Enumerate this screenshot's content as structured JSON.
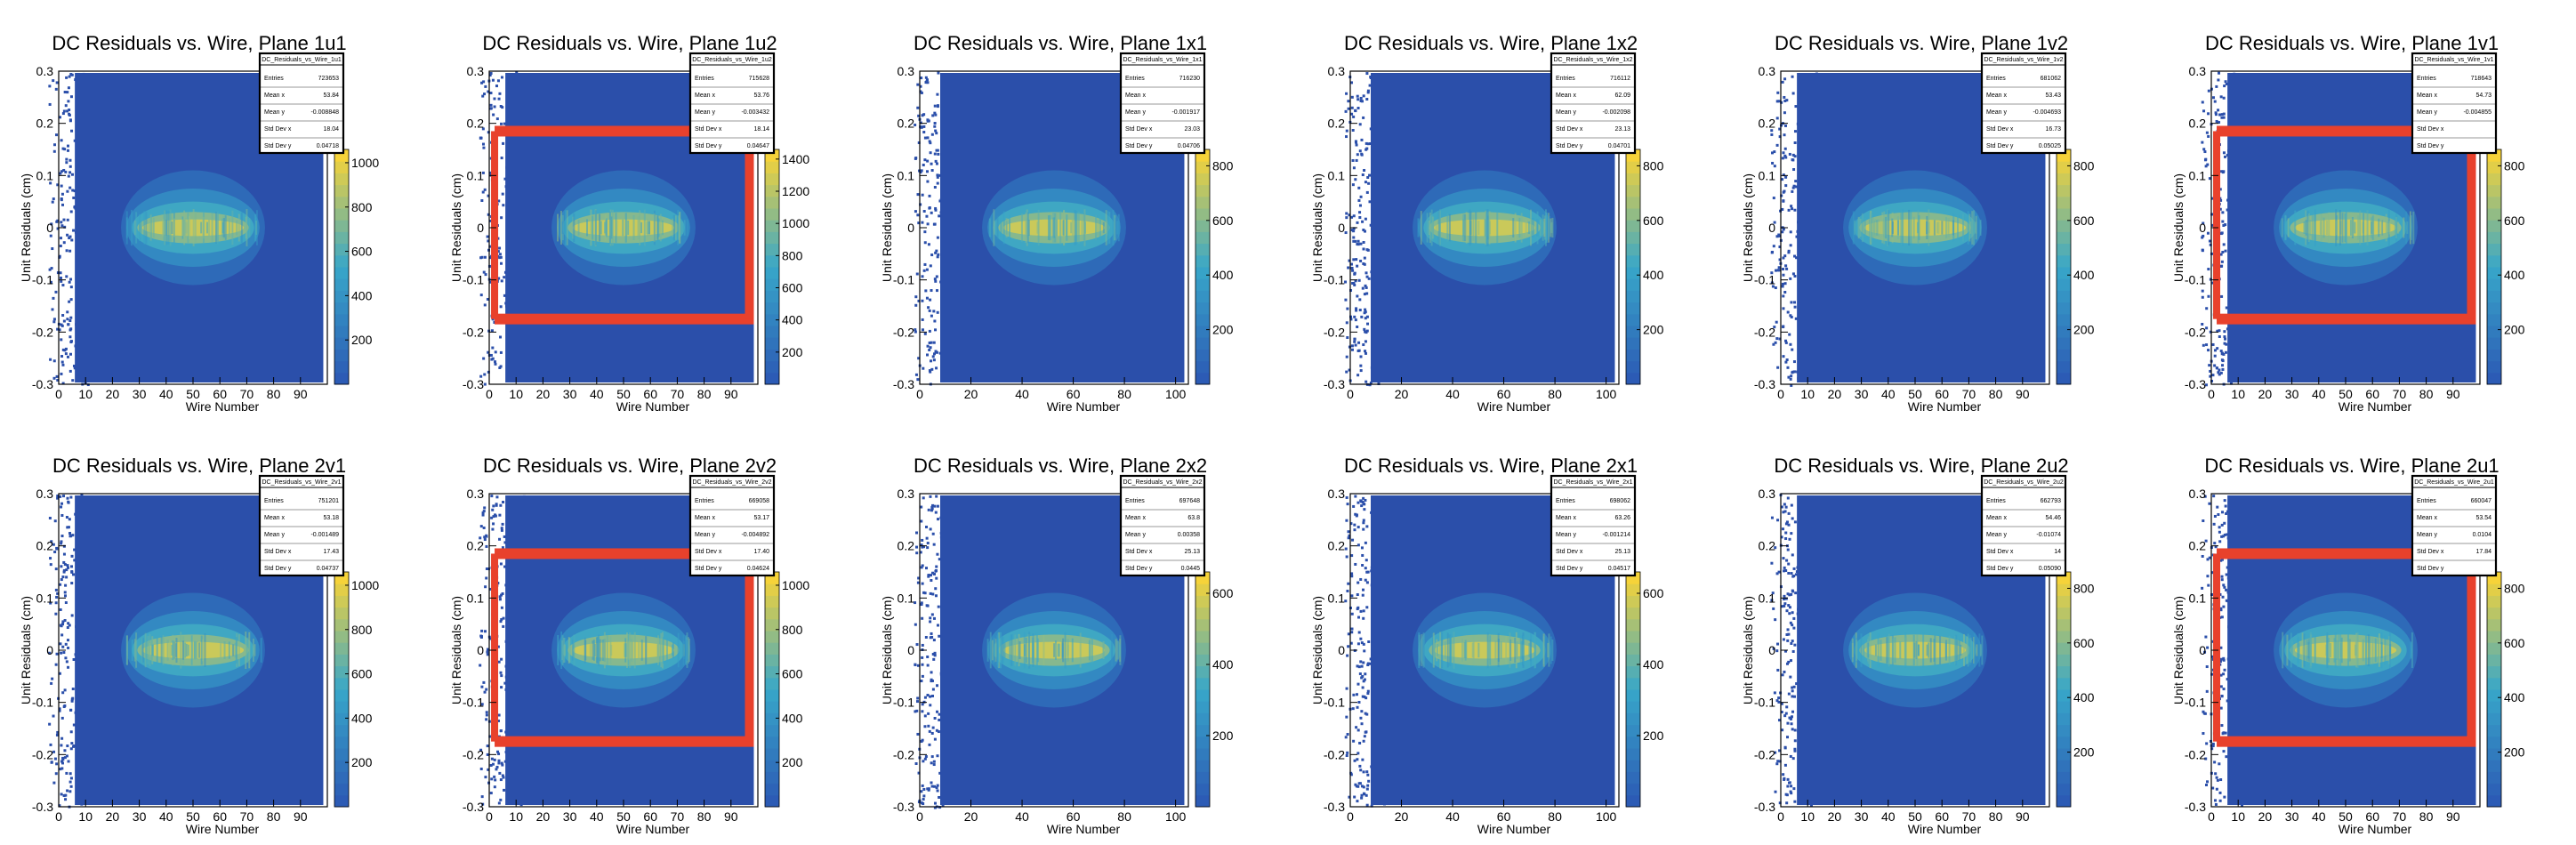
{
  "chart_data": [
    {
      "type": "heatmap",
      "title": "DC Residuals vs. Wire, Plane 1u1",
      "xlabel": "Wire Number",
      "ylabel": "Unit Residuals (cm)",
      "xlim": [
        0,
        100
      ],
      "ylim": [
        -0.3,
        0.3
      ],
      "xticks": [
        0,
        10,
        20,
        30,
        40,
        50,
        60,
        70,
        80,
        90
      ],
      "zticks": [
        "200",
        "400",
        "600",
        "800",
        "1000"
      ],
      "overlay": false,
      "stats": {
        "name": "DC_Residuals_vs_Wire_1u1",
        "entries": "723653",
        "mean_x": "53.84",
        "mean_y": "-0.008848",
        "std_dev_x": "18.04",
        "std_dev_y": "0.04718"
      }
    },
    {
      "type": "heatmap",
      "title": "DC Residuals vs. Wire, Plane 1u2",
      "xlabel": "Wire Number",
      "ylabel": "Unit Residuals (cm)",
      "xlim": [
        0,
        100
      ],
      "ylim": [
        -0.3,
        0.3
      ],
      "xticks": [
        0,
        10,
        20,
        30,
        40,
        50,
        60,
        70,
        80,
        90
      ],
      "zticks": [
        "200",
        "400",
        "600",
        "800",
        "1000",
        "1200",
        "1400"
      ],
      "overlay": true,
      "stats": {
        "name": "DC_Residuals_vs_Wire_1u2",
        "entries": "715628",
        "mean_x": "53.76",
        "mean_y": "-0.003432",
        "std_dev_x": "18.14",
        "std_dev_y": "0.04647"
      }
    },
    {
      "type": "heatmap",
      "title": "DC Residuals vs. Wire, Plane 1x1",
      "xlabel": "Wire Number",
      "ylabel": "Unit Residuals (cm)",
      "xlim": [
        0,
        105
      ],
      "ylim": [
        -0.3,
        0.3
      ],
      "xticks": [
        0,
        20,
        40,
        60,
        80,
        100
      ],
      "zticks": [
        "200",
        "400",
        "600",
        "800"
      ],
      "overlay": false,
      "stats": {
        "name": "DC_Residuals_vs_Wire_1x1",
        "entries": "716230",
        "mean_x": "",
        "mean_y": "-0.001917",
        "std_dev_x": "23.03",
        "std_dev_y": "0.04706"
      }
    },
    {
      "type": "heatmap",
      "title": "DC Residuals vs. Wire, Plane 1x2",
      "xlabel": "Wire Number",
      "ylabel": "Unit Residuals (cm)",
      "xlim": [
        0,
        105
      ],
      "ylim": [
        -0.3,
        0.3
      ],
      "xticks": [
        0,
        20,
        40,
        60,
        80,
        100
      ],
      "zticks": [
        "200",
        "400",
        "600",
        "800"
      ],
      "overlay": false,
      "stats": {
        "name": "DC_Residuals_vs_Wire_1x2",
        "entries": "716112",
        "mean_x": "62.09",
        "mean_y": "-0.002098",
        "std_dev_x": "23.13",
        "std_dev_y": "0.04701"
      }
    },
    {
      "type": "heatmap",
      "title": "DC Residuals vs. Wire, Plane 1v2",
      "xlabel": "Wire Number",
      "ylabel": "Unit Residuals (cm)",
      "xlim": [
        0,
        100
      ],
      "ylim": [
        -0.3,
        0.3
      ],
      "xticks": [
        0,
        10,
        20,
        30,
        40,
        50,
        60,
        70,
        80,
        90
      ],
      "zticks": [
        "200",
        "400",
        "600",
        "800"
      ],
      "overlay": false,
      "stats": {
        "name": "DC_Residuals_vs_Wire_1v2",
        "entries": "681062",
        "mean_x": "53.43",
        "mean_y": "-0.004693",
        "std_dev_x": "16.73",
        "std_dev_y": "0.05025"
      }
    },
    {
      "type": "heatmap",
      "title": "DC Residuals vs. Wire, Plane 1v1",
      "xlabel": "Wire Number",
      "ylabel": "Unit Residuals (cm)",
      "xlim": [
        0,
        100
      ],
      "ylim": [
        -0.3,
        0.3
      ],
      "xticks": [
        0,
        10,
        20,
        30,
        40,
        50,
        60,
        70,
        80,
        90
      ],
      "zticks": [
        "200",
        "400",
        "600",
        "800"
      ],
      "overlay": true,
      "stats": {
        "name": "DC_Residuals_vs_Wire_1v1",
        "entries": "718643",
        "mean_x": "54.73",
        "mean_y": "-0.004855",
        "std_dev_x": "",
        "std_dev_y": ""
      }
    },
    {
      "type": "heatmap",
      "title": "DC Residuals vs. Wire, Plane 2v1",
      "xlabel": "Wire Number",
      "ylabel": "Unit Residuals (cm)",
      "xlim": [
        0,
        100
      ],
      "ylim": [
        -0.3,
        0.3
      ],
      "xticks": [
        0,
        10,
        20,
        30,
        40,
        50,
        60,
        70,
        80,
        90
      ],
      "zticks": [
        "200",
        "400",
        "600",
        "800",
        "1000"
      ],
      "overlay": false,
      "stats": {
        "name": "DC_Residuals_vs_Wire_2v1",
        "entries": "751201",
        "mean_x": "53.18",
        "mean_y": "-0.001489",
        "std_dev_x": "17.43",
        "std_dev_y": "0.04737"
      }
    },
    {
      "type": "heatmap",
      "title": "DC Residuals vs. Wire, Plane 2v2",
      "xlabel": "Wire Number",
      "ylabel": "Unit Residuals (cm)",
      "xlim": [
        0,
        100
      ],
      "ylim": [
        -0.3,
        0.3
      ],
      "xticks": [
        0,
        10,
        20,
        30,
        40,
        50,
        60,
        70,
        80,
        90
      ],
      "zticks": [
        "200",
        "400",
        "600",
        "800",
        "1000"
      ],
      "overlay": true,
      "stats": {
        "name": "DC_Residuals_vs_Wire_2v2",
        "entries": "669058",
        "mean_x": "53.17",
        "mean_y": "-0.004892",
        "std_dev_x": "17.40",
        "std_dev_y": "0.04624"
      }
    },
    {
      "type": "heatmap",
      "title": "DC Residuals vs. Wire, Plane 2x2",
      "xlabel": "Wire Number",
      "ylabel": "Unit Residuals (cm)",
      "xlim": [
        0,
        105
      ],
      "ylim": [
        -0.3,
        0.3
      ],
      "xticks": [
        0,
        20,
        40,
        60,
        80,
        100
      ],
      "zticks": [
        "200",
        "400",
        "600"
      ],
      "overlay": false,
      "stats": {
        "name": "DC_Residuals_vs_Wire_2x2",
        "entries": "697648",
        "mean_x": "63.8",
        "mean_y": "0.00358",
        "std_dev_x": "25.13",
        "std_dev_y": "0.0445"
      }
    },
    {
      "type": "heatmap",
      "title": "DC Residuals vs. Wire, Plane 2x1",
      "xlabel": "Wire Number",
      "ylabel": "Unit Residuals (cm)",
      "xlim": [
        0,
        105
      ],
      "ylim": [
        -0.3,
        0.3
      ],
      "xticks": [
        0,
        20,
        40,
        60,
        80,
        100
      ],
      "zticks": [
        "200",
        "400",
        "600"
      ],
      "overlay": false,
      "stats": {
        "name": "DC_Residuals_vs_Wire_2x1",
        "entries": "698062",
        "mean_x": "63.26",
        "mean_y": "-0.001214",
        "std_dev_x": "25.13",
        "std_dev_y": "0.04517"
      }
    },
    {
      "type": "heatmap",
      "title": "DC Residuals vs. Wire, Plane 2u2",
      "xlabel": "Wire Number",
      "ylabel": "Unit Residuals (cm)",
      "xlim": [
        0,
        100
      ],
      "ylim": [
        -0.3,
        0.3
      ],
      "xticks": [
        0,
        10,
        20,
        30,
        40,
        50,
        60,
        70,
        80,
        90
      ],
      "zticks": [
        "200",
        "400",
        "600",
        "800"
      ],
      "overlay": false,
      "stats": {
        "name": "DC_Residuals_vs_Wire_2u2",
        "entries": "662793",
        "mean_x": "54.46",
        "mean_y": "-0.01074",
        "std_dev_x": "14",
        "std_dev_y": "0.05090"
      }
    },
    {
      "type": "heatmap",
      "title": "DC Residuals vs. Wire, Plane 2u1",
      "xlabel": "Wire Number",
      "ylabel": "Unit Residuals (cm)",
      "xlim": [
        0,
        100
      ],
      "ylim": [
        -0.3,
        0.3
      ],
      "xticks": [
        0,
        10,
        20,
        30,
        40,
        50,
        60,
        70,
        80,
        90
      ],
      "zticks": [
        "200",
        "400",
        "600",
        "800"
      ],
      "overlay": true,
      "stats": {
        "name": "DC_Residuals_vs_Wire_2u1",
        "entries": "660047",
        "mean_x": "53.54",
        "mean_y": "0.0104",
        "std_dev_x": "17.84",
        "std_dev_y": ""
      }
    }
  ],
  "stat_labels": {
    "entries": "Entries",
    "mean_x": "Mean x",
    "mean_y": "Mean y",
    "std_dev_x": "Std Dev x",
    "std_dev_y": "Std Dev y"
  },
  "yticks": [
    "-0.3",
    "-0.2",
    "-0.1",
    "0",
    "0.1",
    "0.2",
    "0.3"
  ],
  "colors": {
    "background": "#2b4faa",
    "z_low": "#2c5bb5",
    "z_mid": "#38a7c9",
    "z_high": "#f6d339",
    "overlay": "#e8412c"
  }
}
